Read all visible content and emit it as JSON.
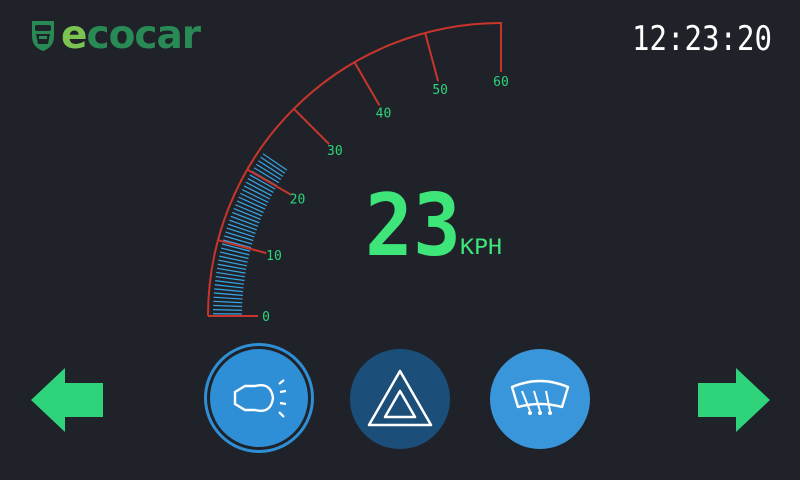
{
  "brand": {
    "logo_text_e": "e",
    "logo_text_rest": "cocar"
  },
  "clock": {
    "time": "12:23:20"
  },
  "speedometer": {
    "speed": "23",
    "unit": "KPH",
    "min": 0,
    "max": 60,
    "major_ticks": [
      "0",
      "10",
      "20",
      "30",
      "40",
      "50",
      "60"
    ],
    "current_value": 23
  },
  "controls": {
    "headlight_icon": "headlight-icon",
    "hazard_icon": "hazard-icon",
    "wiper_icon": "wiper-icon",
    "prev_icon": "arrow-left-icon",
    "next_icon": "arrow-right-icon"
  },
  "colors": {
    "background": "#1f2329",
    "accent_green": "#2fd37a",
    "digits_green": "#3ee67a",
    "gauge_red": "#c8352c",
    "gauge_fill_blue": "#38a6e6",
    "button_blue": "#2f8fd6",
    "button_dark_blue": "#1b4f7a"
  }
}
